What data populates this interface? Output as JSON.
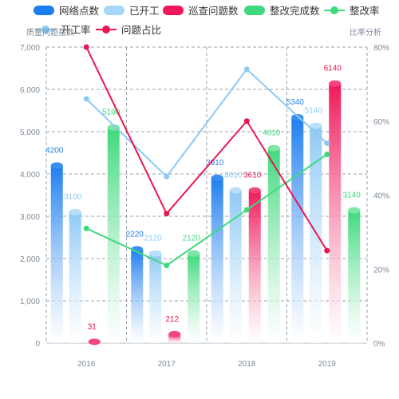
{
  "chart_data": {
    "type": "bar",
    "left_axis_label": "质量问题指数",
    "right_axis_label": "比率分析",
    "categories": [
      "2016",
      "2017",
      "2018",
      "2019"
    ],
    "y_left_ticks": [
      "0",
      "1,000",
      "2,000",
      "3,000",
      "4,000",
      "5,000",
      "6,000",
      "7,000"
    ],
    "y_right_ticks": [
      "0%",
      "20%",
      "40%",
      "60%",
      "80%"
    ],
    "ylim_left": [
      0,
      7000
    ],
    "ylim_right": [
      0,
      80
    ],
    "grid": true,
    "legend": "top",
    "bar_series": [
      {
        "name": "网络点数",
        "values": [
          4200,
          2220,
          3910,
          5340
        ],
        "color": "#1e7ef0"
      },
      {
        "name": "已开工",
        "values": [
          3100,
          2120,
          3610,
          5140
        ],
        "color": "#8ec9f5"
      },
      {
        "name": "巡查问题数",
        "values": [
          31,
          212,
          3610,
          6140
        ],
        "color": "#f0185a"
      },
      {
        "name": "整改完成数",
        "values": [
          5100,
          2120,
          4610,
          3140
        ],
        "color": "#3ed97c"
      }
    ],
    "line_series": [
      {
        "name": "整改率",
        "values": [
          31,
          21,
          36,
          51
        ],
        "color": "#3ed97c"
      },
      {
        "name": "开工率",
        "values": [
          66,
          45,
          74,
          54
        ],
        "color": "#8ec9f5"
      },
      {
        "name": "问题占比",
        "values": [
          80,
          35,
          60,
          25
        ],
        "color": "#e8174f"
      }
    ]
  }
}
